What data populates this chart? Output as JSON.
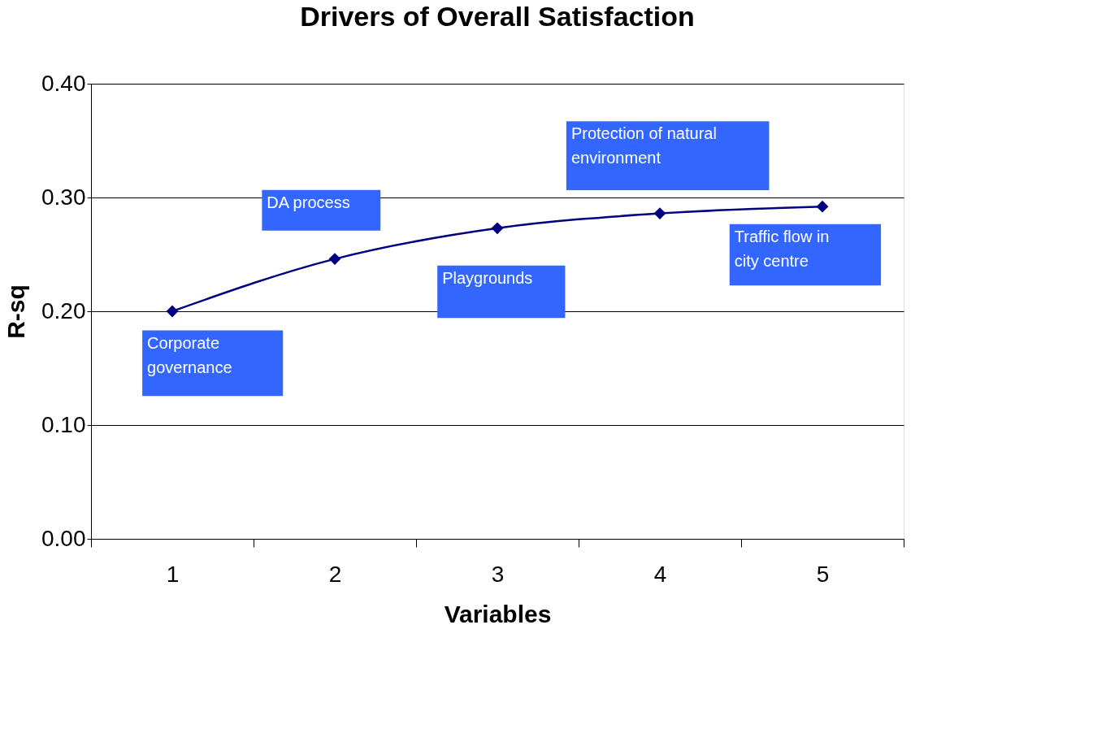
{
  "chart_data": {
    "type": "line",
    "title": "Drivers of Overall Satisfaction",
    "xlabel": "Variables",
    "ylabel": "R-sq",
    "categories": [
      "1",
      "2",
      "3",
      "4",
      "5"
    ],
    "series": [
      {
        "color": "#000080",
        "values": [
          0.2,
          0.246,
          0.273,
          0.286,
          0.292
        ]
      }
    ],
    "ylim": [
      0,
      0.4
    ],
    "yticks": [
      {
        "value": 0,
        "label": "0.00"
      },
      {
        "value": 0.1,
        "label": "0.10"
      },
      {
        "value": 0.2,
        "label": "0.20"
      },
      {
        "value": 0.3,
        "label": "0.30"
      },
      {
        "value": 0.4,
        "label": "0.40"
      }
    ],
    "grid": "y",
    "marker": "diamond",
    "line_style": "solid",
    "annotations": [
      {
        "text": "Corporate\ngovernance",
        "x": "1",
        "y": 0.2
      },
      {
        "text": "DA process",
        "x": "2",
        "y": 0.246
      },
      {
        "text": "Playgrounds",
        "x": "3",
        "y": 0.273
      },
      {
        "text": "Protection of natural\nenvironment",
        "x": "4",
        "y": 0.286
      },
      {
        "text": "Traffic flow in\ncity centre",
        "x": "5",
        "y": 0.292
      }
    ]
  }
}
